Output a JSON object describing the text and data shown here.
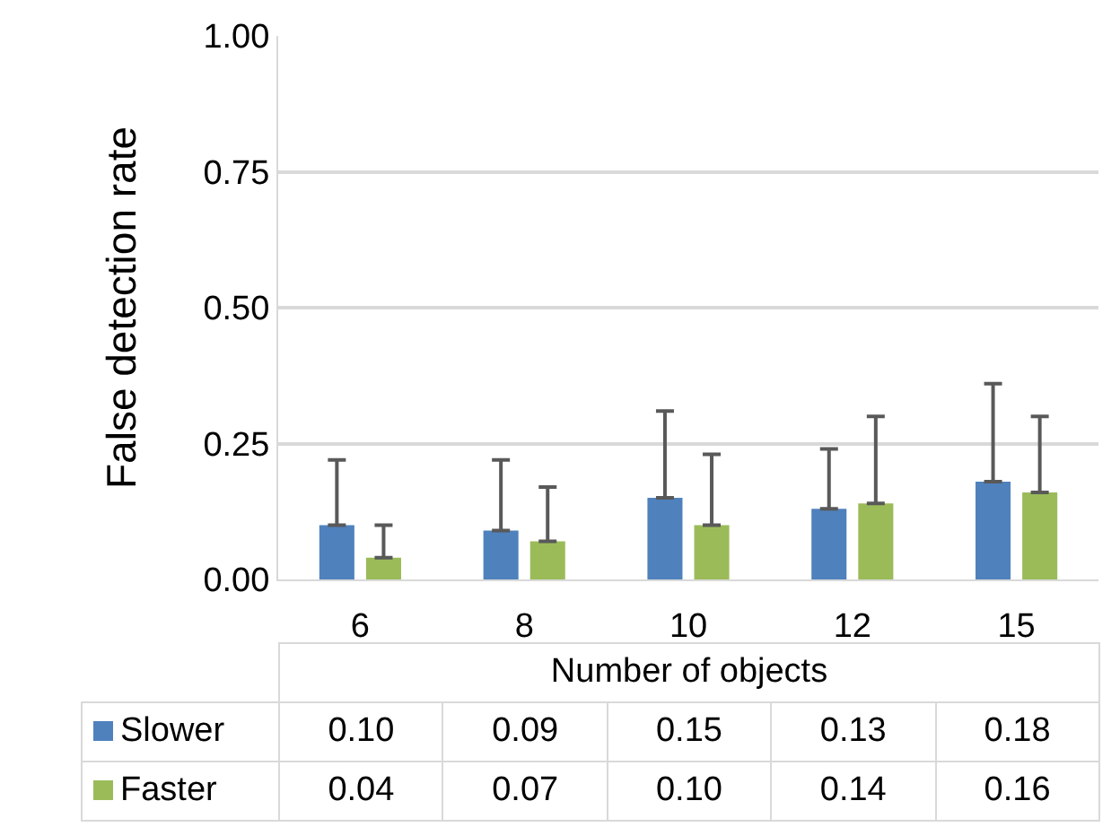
{
  "chart_data": {
    "type": "bar",
    "ylabel": "False detection rate",
    "xlabel": "Number of objects",
    "categories": [
      "6",
      "8",
      "10",
      "12",
      "15"
    ],
    "series": [
      {
        "name": "Slower",
        "color": "#4f81bd",
        "values": [
          0.1,
          0.09,
          0.15,
          0.13,
          0.18
        ],
        "value_labels": [
          "0.10",
          "0.09",
          "0.15",
          "0.13",
          "0.18"
        ],
        "errors": [
          [
            0.1,
            0.22
          ],
          [
            0.09,
            0.22
          ],
          [
            0.15,
            0.31
          ],
          [
            0.13,
            0.24
          ],
          [
            0.18,
            0.36
          ]
        ]
      },
      {
        "name": "Faster",
        "color": "#9bbb59",
        "values": [
          0.04,
          0.07,
          0.1,
          0.14,
          0.16
        ],
        "value_labels": [
          "0.04",
          "0.07",
          "0.10",
          "0.14",
          "0.16"
        ],
        "errors": [
          [
            0.04,
            0.1
          ],
          [
            0.07,
            0.17
          ],
          [
            0.1,
            0.23
          ],
          [
            0.14,
            0.3
          ],
          [
            0.16,
            0.3
          ]
        ]
      }
    ],
    "ylim": [
      0,
      1
    ],
    "yticks": [
      {
        "value": 0,
        "label": "0.00"
      },
      {
        "value": 0.25,
        "label": "0.25"
      },
      {
        "value": 0.5,
        "label": "0.50"
      },
      {
        "value": 0.75,
        "label": "0.75"
      },
      {
        "value": 1,
        "label": "1.00"
      }
    ],
    "grid": "y",
    "legend": "bottom"
  }
}
